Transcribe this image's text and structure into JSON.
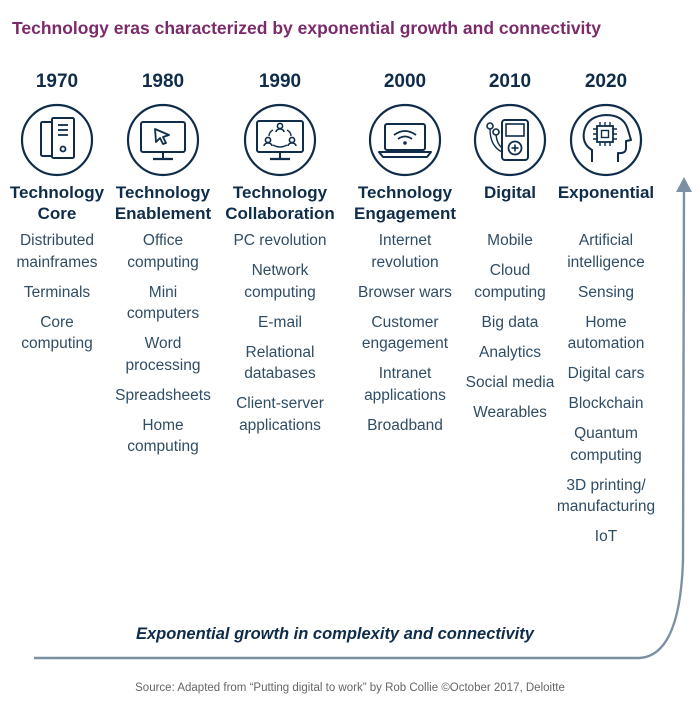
{
  "title": "Technology eras characterized by exponential growth and connectivity",
  "colors": {
    "navy": "#0f2d4a",
    "purple": "#7b2a6a",
    "item_text": "#2f4d65",
    "curve": "#7c90a4"
  },
  "eras": [
    {
      "year": "1970",
      "name": "Technology\nCore",
      "icon": "mainframe-computer-icon",
      "items": [
        "Distributed\nmainframes",
        "Terminals",
        "Core\ncomputing"
      ]
    },
    {
      "year": "1980",
      "name": "Technology\nEnablement",
      "icon": "desktop-monitor-cursor-icon",
      "items": [
        "Office\ncomputing",
        "Mini\ncomputers",
        "Word\nprocessing",
        "Spreadsheets",
        "Home\ncomputing"
      ]
    },
    {
      "year": "1990",
      "name": "Technology\nCollaboration",
      "icon": "network-people-monitor-icon",
      "items": [
        "PC revolution",
        "Network\ncomputing",
        "E-mail",
        "Relational\ndatabases",
        "Client-server\napplications"
      ]
    },
    {
      "year": "2000",
      "name": "Technology\nEngagement",
      "icon": "laptop-wifi-icon",
      "items": [
        "Internet\nrevolution",
        "Browser wars",
        "Customer\nengagement",
        "Intranet\napplications",
        "Broadband"
      ]
    },
    {
      "year": "2010",
      "name": "Digital",
      "icon": "media-player-earbuds-icon",
      "items": [
        "Mobile",
        "Cloud\ncomputing",
        "Big data",
        "Analytics",
        "Social media",
        "Wearables"
      ]
    },
    {
      "year": "2020",
      "name": "Exponential",
      "icon": "ai-chip-head-icon",
      "items": [
        "Artificial\nintelligence",
        "Sensing",
        "Home\nautomation",
        "Digital cars",
        "Blockchain",
        "Quantum\ncomputing",
        "3D printing/\nmanufacturing",
        "IoT"
      ]
    }
  ],
  "curve_caption": "Exponential growth in complexity and connectivity",
  "source": "Source: Adapted from “Putting digital to work” by Rob Collie ©October 2017, Deloitte"
}
